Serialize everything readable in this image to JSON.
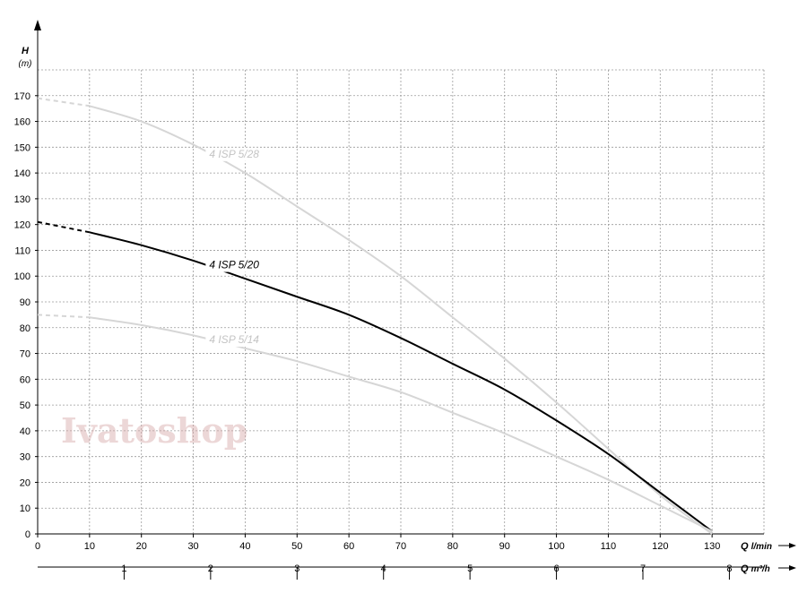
{
  "chart_data": {
    "type": "line",
    "ylabel": "H",
    "yunit": "(m)",
    "xlabel_primary": "Q",
    "xunit_primary": "l/min",
    "xlabel_secondary": "Q",
    "xunit_secondary": "m³/h",
    "xlim": [
      0,
      140
    ],
    "ylim": [
      0,
      180
    ],
    "x_ticks": [
      "0",
      "10",
      "20",
      "30",
      "40",
      "50",
      "60",
      "70",
      "80",
      "90",
      "100",
      "110",
      "120",
      "130"
    ],
    "y_ticks": [
      "0",
      "10",
      "20",
      "30",
      "40",
      "50",
      "60",
      "70",
      "80",
      "90",
      "100",
      "110",
      "120",
      "130",
      "140",
      "150",
      "160",
      "170"
    ],
    "x2_ticks": [
      "1",
      "2",
      "3",
      "4",
      "5",
      "6",
      "7",
      "8"
    ],
    "grid": true,
    "series": [
      {
        "name": "4 ISP 5/28",
        "color": "#d6d6d6",
        "label_at": [
          31,
          146
        ],
        "x": [
          0,
          10,
          20,
          30,
          40,
          50,
          60,
          70,
          80,
          90,
          100,
          110,
          120,
          130
        ],
        "y": [
          169,
          166,
          160,
          151,
          140,
          127,
          114,
          100,
          84,
          68,
          51,
          33,
          15,
          0
        ]
      },
      {
        "name": "4 ISP 5/20",
        "color": "#000000",
        "label_at": [
          31,
          103
        ],
        "x": [
          0,
          10,
          20,
          30,
          40,
          50,
          60,
          70,
          80,
          90,
          100,
          110,
          120,
          130
        ],
        "y": [
          121,
          117,
          112,
          106,
          99,
          92,
          85,
          76,
          66,
          56,
          44,
          31,
          16,
          1
        ]
      },
      {
        "name": "4 ISP 5/14",
        "color": "#d6d6d6",
        "label_at": [
          31,
          74
        ],
        "x": [
          0,
          10,
          20,
          30,
          40,
          50,
          60,
          70,
          80,
          90,
          100,
          110,
          120,
          130
        ],
        "y": [
          85,
          84,
          81,
          77,
          72,
          67,
          61,
          55,
          47,
          39,
          30,
          21,
          11,
          1
        ]
      }
    ],
    "watermark": "Ivatoshop"
  }
}
